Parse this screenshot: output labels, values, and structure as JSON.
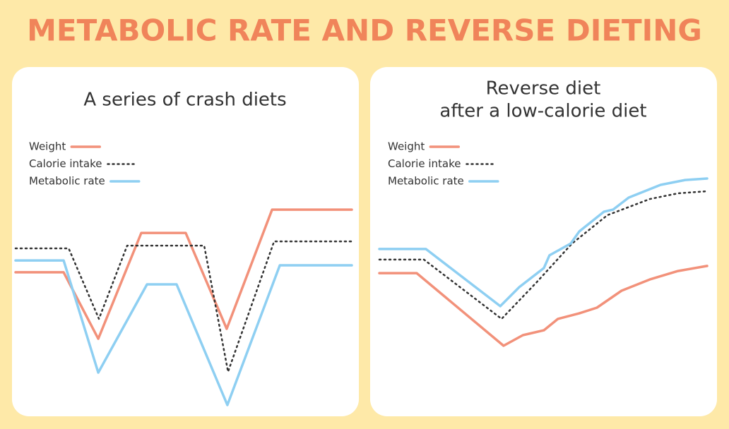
{
  "header": {
    "title": "METABOLIC RATE AND REVERSE DIETING"
  },
  "chart_data": [
    {
      "type": "line",
      "title": [
        "A series of crash diets"
      ],
      "xlim": [
        0,
        100
      ],
      "ylim": [
        0,
        110
      ],
      "series": [
        {
          "name": "Weight",
          "color": "#f2917a",
          "style": "solid",
          "x": [
            0,
            14.3,
            24.6,
            37.4,
            50.6,
            62.8,
            76.3,
            100
          ],
          "values": [
            64.7,
            64.7,
            33.3,
            83.3,
            83.3,
            38,
            94.3,
            94.3
          ]
        },
        {
          "name": "Calorie intake",
          "color": "#333333",
          "style": "dotted",
          "x": [
            0,
            15.8,
            24.8,
            33.2,
            56.1,
            63.2,
            76.9,
            100
          ],
          "values": [
            76,
            76,
            42.7,
            77.3,
            77.3,
            17.7,
            79.3,
            79.3
          ]
        },
        {
          "name": "Metabolic rate",
          "color": "#8ecff2",
          "style": "solid",
          "x": [
            0,
            14.3,
            24.6,
            39.1,
            47.9,
            63,
            78.6,
            100
          ],
          "values": [
            70.3,
            70.3,
            17.3,
            59,
            59,
            2,
            68,
            68
          ]
        }
      ]
    },
    {
      "type": "line",
      "title": [
        "Reverse diet",
        "after a low-calorie diet"
      ],
      "xlim": [
        0,
        100
      ],
      "ylim": [
        0,
        110
      ],
      "series": [
        {
          "name": "Weight",
          "color": "#f2917a",
          "style": "solid",
          "x": [
            0,
            11.4,
            37.9,
            43.8,
            50.2,
            54.5,
            61,
            66.4,
            73.9,
            82.5,
            91.1,
            100
          ],
          "values": [
            64.3,
            64.3,
            30,
            35,
            37.3,
            42.7,
            45.3,
            48,
            56,
            61.3,
            65.3,
            67.7
          ]
        },
        {
          "name": "Calorie intake",
          "color": "#333333",
          "style": "dotted",
          "x": [
            0,
            13.6,
            37.3,
            48,
            58.8,
            69.6,
            82.5,
            91.1,
            100
          ],
          "values": [
            70.7,
            70.7,
            42.7,
            60,
            78.3,
            91.7,
            99.3,
            102,
            103
          ]
        },
        {
          "name": "Metabolic rate",
          "color": "#8ecff2",
          "style": "solid",
          "x": [
            0,
            14.2,
            36.9,
            42.7,
            50.2,
            51.9,
            58.4,
            61,
            68.5,
            71.3,
            76.1,
            85.8,
            93.3,
            100
          ],
          "values": [
            75.7,
            75.7,
            48.7,
            57.7,
            66.7,
            72.7,
            78.3,
            84,
            93.3,
            94.3,
            100,
            106,
            108.3,
            109
          ]
        }
      ]
    }
  ]
}
